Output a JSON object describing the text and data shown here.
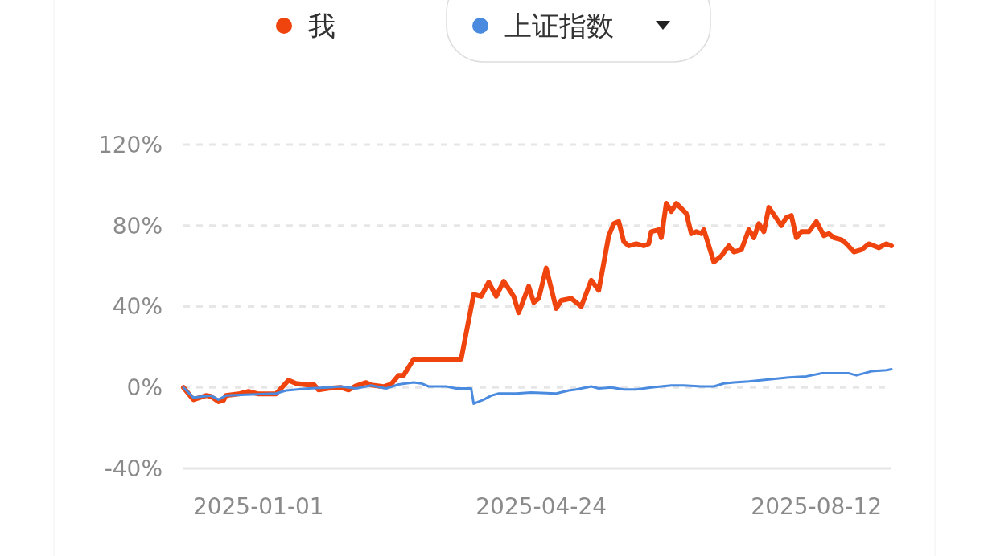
{
  "chart_data": {
    "type": "line",
    "legend": "top",
    "grid": "y",
    "xlim": [
      "2024-12-02",
      "2025-09-11"
    ],
    "xticks": [
      "2025-01-01",
      "2025-04-24",
      "2025-08-12"
    ],
    "ylim": [
      -40,
      120
    ],
    "yticks": [
      {
        "value": -40,
        "label": "-40%"
      },
      {
        "value": 0,
        "label": "0%"
      },
      {
        "value": 40,
        "label": "40%"
      },
      {
        "value": 80,
        "label": "80%"
      },
      {
        "value": 120,
        "label": "120%"
      }
    ],
    "series": [
      {
        "name": "我",
        "color": "#f0440f",
        "x": [
          "2024-12-02",
          "2024-12-06",
          "2024-12-11",
          "2024-12-13",
          "2024-12-16",
          "2024-12-18",
          "2024-12-19",
          "2024-12-24",
          "2024-12-28",
          "2025-01-01",
          "2025-01-08",
          "2025-01-13",
          "2025-01-16",
          "2025-01-21",
          "2025-01-23",
          "2025-01-25",
          "2025-01-29",
          "2025-02-03",
          "2025-02-06",
          "2025-02-09",
          "2025-02-13",
          "2025-02-15",
          "2025-02-20",
          "2025-02-23",
          "2025-02-26",
          "2025-02-28",
          "2025-03-04",
          "2025-03-23",
          "2025-03-28",
          "2025-03-31",
          "2025-04-03",
          "2025-04-06",
          "2025-04-09",
          "2025-04-13",
          "2025-04-15",
          "2025-04-19",
          "2025-04-21",
          "2025-04-23",
          "2025-04-26",
          "2025-04-30",
          "2025-05-02",
          "2025-05-06",
          "2025-05-10",
          "2025-05-14",
          "2025-05-17",
          "2025-05-21",
          "2025-05-23",
          "2025-05-25",
          "2025-05-27",
          "2025-05-29",
          "2025-06-01",
          "2025-06-04",
          "2025-06-06",
          "2025-06-07",
          "2025-06-10",
          "2025-06-11",
          "2025-06-13",
          "2025-06-15",
          "2025-06-17",
          "2025-06-21",
          "2025-06-23",
          "2025-06-25",
          "2025-06-27",
          "2025-06-28",
          "2025-06-30",
          "2025-07-02",
          "2025-07-05",
          "2025-07-08",
          "2025-07-10",
          "2025-07-13",
          "2025-07-16",
          "2025-07-18",
          "2025-07-20",
          "2025-07-22",
          "2025-07-24",
          "2025-07-29",
          "2025-07-31",
          "2025-08-02",
          "2025-08-04",
          "2025-08-06",
          "2025-08-09",
          "2025-08-12",
          "2025-08-15",
          "2025-08-17",
          "2025-08-19",
          "2025-08-22",
          "2025-08-24",
          "2025-08-27",
          "2025-08-30",
          "2025-09-02",
          "2025-09-06",
          "2025-09-09",
          "2025-09-11"
        ],
        "values": [
          0,
          -6,
          -4,
          -4.4,
          -7,
          -6.4,
          -4,
          -3.2,
          -2,
          -3.2,
          -3.2,
          3.6,
          2,
          1.2,
          1.6,
          -1.2,
          -0.4,
          0,
          -1.2,
          0.8,
          2.4,
          1.2,
          0.4,
          1.6,
          6,
          6,
          14,
          14,
          46,
          45,
          52,
          45,
          52.5,
          45,
          37,
          50,
          42,
          44,
          59,
          39,
          43,
          44,
          40,
          53,
          48,
          75,
          81,
          82,
          72,
          70,
          71,
          70,
          71,
          77,
          78,
          74,
          91,
          87,
          91,
          86,
          76,
          77,
          76,
          78,
          70,
          62,
          65,
          70,
          67,
          68,
          78,
          74,
          81,
          77,
          89,
          80,
          84,
          85,
          74,
          77,
          77,
          82,
          75,
          76,
          74,
          73,
          71,
          67,
          68,
          71,
          69,
          71,
          70
        ]
      },
      {
        "name": "上证指数",
        "color": "#4a8be0",
        "x": [
          "2024-12-02",
          "2024-12-06",
          "2024-12-13",
          "2024-12-16",
          "2024-12-19",
          "2025-01-08",
          "2025-01-12",
          "2025-01-21",
          "2025-01-29",
          "2025-02-03",
          "2025-02-09",
          "2025-02-15",
          "2025-02-21",
          "2025-02-26",
          "2025-03-04",
          "2025-03-07",
          "2025-03-10",
          "2025-03-17",
          "2025-03-21",
          "2025-03-27",
          "2025-03-28",
          "2025-04-01",
          "2025-04-04",
          "2025-04-07",
          "2025-04-14",
          "2025-04-20",
          "2025-04-30",
          "2025-05-05",
          "2025-05-08",
          "2025-05-14",
          "2025-05-17",
          "2025-05-22",
          "2025-05-27",
          "2025-06-01",
          "2025-06-07",
          "2025-06-15",
          "2025-06-20",
          "2025-06-27",
          "2025-07-02",
          "2025-07-06",
          "2025-07-10",
          "2025-07-16",
          "2025-07-24",
          "2025-08-01",
          "2025-08-08",
          "2025-08-14",
          "2025-08-25",
          "2025-08-28",
          "2025-09-03",
          "2025-09-09",
          "2025-09-11"
        ],
        "values": [
          0,
          -5,
          -4,
          -6,
          -4,
          -3,
          -1.5,
          -0.5,
          0,
          0.5,
          -0.5,
          1,
          -0.5,
          1.5,
          2.5,
          2,
          0.5,
          0.5,
          -0.5,
          -0.5,
          -8,
          -6,
          -4,
          -3,
          -3,
          -2.5,
          -3,
          -1.5,
          -1,
          0.5,
          -0.5,
          0,
          -1,
          -1,
          0,
          1,
          1,
          0.5,
          0.5,
          2,
          2.5,
          3,
          4,
          5,
          5.5,
          7,
          7,
          6,
          8,
          8.5,
          9
        ]
      }
    ]
  }
}
